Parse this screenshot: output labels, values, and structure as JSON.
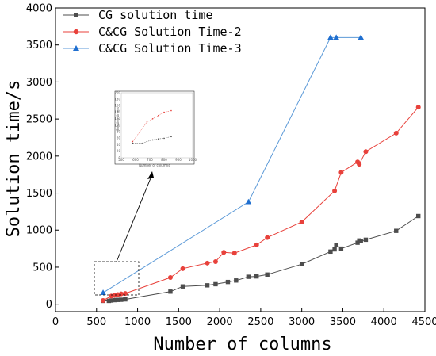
{
  "chart_data": {
    "type": "line",
    "xlabel": "Number of columns",
    "ylabel": "Solution time/s",
    "xlim": [
      0,
      4500
    ],
    "ylim": [
      -100,
      4000
    ],
    "x_ticks": [
      "0",
      "500",
      "1000",
      "1500",
      "2000",
      "2500",
      "3000",
      "3500",
      "4000",
      "4500"
    ],
    "y_ticks": [
      "0",
      "500",
      "1000",
      "1500",
      "2000",
      "2500",
      "3000",
      "3500",
      "4000"
    ],
    "legend_position": "top-left",
    "grid": false,
    "series": [
      {
        "name": "CG solution time",
        "color": "#4d4d4d",
        "marker": "square",
        "points": [
          [
            580,
            45
          ],
          [
            650,
            45
          ],
          [
            680,
            50
          ],
          [
            720,
            55
          ],
          [
            760,
            58
          ],
          [
            800,
            60
          ],
          [
            850,
            65
          ],
          [
            1400,
            170
          ],
          [
            1550,
            240
          ],
          [
            1850,
            255
          ],
          [
            1950,
            270
          ],
          [
            2100,
            300
          ],
          [
            2200,
            320
          ],
          [
            2350,
            370
          ],
          [
            2450,
            375
          ],
          [
            2580,
            400
          ],
          [
            3000,
            540
          ],
          [
            3350,
            710
          ],
          [
            3400,
            740
          ],
          [
            3420,
            800
          ],
          [
            3480,
            750
          ],
          [
            3680,
            830
          ],
          [
            3700,
            860
          ],
          [
            3720,
            850
          ],
          [
            3780,
            870
          ],
          [
            4150,
            990
          ],
          [
            4420,
            1190
          ]
        ]
      },
      {
        "name": "C&CG Solution Time-2",
        "color": "#e8413b",
        "marker": "circle",
        "points": [
          [
            580,
            50
          ],
          [
            680,
            110
          ],
          [
            720,
            120
          ],
          [
            760,
            130
          ],
          [
            800,
            140
          ],
          [
            850,
            145
          ],
          [
            1400,
            360
          ],
          [
            1550,
            480
          ],
          [
            1850,
            555
          ],
          [
            1950,
            575
          ],
          [
            2050,
            700
          ],
          [
            2180,
            690
          ],
          [
            2450,
            800
          ],
          [
            2580,
            900
          ],
          [
            3000,
            1110
          ],
          [
            3400,
            1530
          ],
          [
            3480,
            1780
          ],
          [
            3680,
            1920
          ],
          [
            3700,
            1890
          ],
          [
            3780,
            2060
          ],
          [
            4150,
            2310
          ],
          [
            4420,
            2660
          ]
        ]
      },
      {
        "name": "C&CG Solution Time-3",
        "color": "#5c9ad8",
        "marker": "triangle",
        "points": [
          [
            580,
            155
          ],
          [
            2350,
            1380
          ],
          [
            3350,
            3600
          ],
          [
            3420,
            3600
          ],
          [
            3720,
            3600
          ]
        ]
      }
    ],
    "inset": {
      "ylabel": "Solution time/s",
      "xlabel": "Number of columns",
      "x_ticks": [
        "500",
        "550",
        "600",
        "650",
        "700",
        "750",
        "800",
        "850",
        "900",
        "950",
        "1000"
      ],
      "y_ticks": [
        "0",
        "20",
        "40",
        "60",
        "80",
        "100",
        "120",
        "140",
        "160",
        "180",
        "200"
      ]
    }
  }
}
